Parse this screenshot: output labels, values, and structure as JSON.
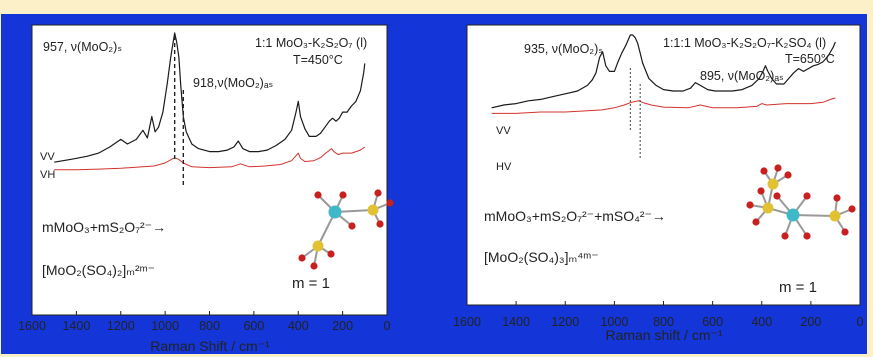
{
  "colors": {
    "page_bg": "#fbf0c8",
    "frame": "#1436d8",
    "vv_line": "#1a1a1a",
    "vh_line": "#d2322d",
    "mo_atom": "#3fb8c8",
    "s_atom": "#e2c233",
    "o_atom": "#c81f1f"
  },
  "chart_data": [
    {
      "type": "line",
      "xlabel": "Raman Shift / cm⁻¹",
      "xlim": [
        1600,
        0
      ],
      "xticks": [
        1600,
        1400,
        1200,
        1000,
        800,
        600,
        400,
        200,
        0
      ],
      "ylim": [
        0,
        10
      ],
      "annotations": {
        "composition": "1:1 MoO₃-K₂S₂O₇ (l)",
        "temperature": "T=450°C",
        "peak_s": "957, ν(MoO₂)ₛ",
        "peak_as": "918,ν(MoO₂)ₐₛ",
        "reaction": "mMoO₃+mS₂O₇²⁻→",
        "product": "[MoO₂(SO₄)₂]ₘ²ᵐ⁻",
        "m_value": "m = 1"
      },
      "series": [
        {
          "name": "VV",
          "x": [
            1500,
            1420,
            1350,
            1300,
            1250,
            1200,
            1170,
            1130,
            1100,
            1080,
            1060,
            1045,
            1030,
            1010,
            990,
            975,
            965,
            957,
            948,
            938,
            930,
            918,
            905,
            880,
            850,
            800,
            760,
            720,
            690,
            670,
            650,
            620,
            580,
            540,
            500,
            460,
            430,
            410,
            400,
            390,
            370,
            350,
            320,
            300,
            280,
            260,
            245,
            230,
            215,
            200,
            180,
            160,
            140,
            120,
            105,
            100
          ],
          "y": [
            1.3,
            1.5,
            1.7,
            1.9,
            2.3,
            2.8,
            2.5,
            2.8,
            3.4,
            2.9,
            4.3,
            3.3,
            3.6,
            4.6,
            6.5,
            8.2,
            9.1,
            9.8,
            9.2,
            8.2,
            6.4,
            4.3,
            3.3,
            2.5,
            2.2,
            2.0,
            2.0,
            2.1,
            2.3,
            2.7,
            2.2,
            2.0,
            2.0,
            2.1,
            2.4,
            2.8,
            3.4,
            4.6,
            5.3,
            4.3,
            3.5,
            3.0,
            3.0,
            3.2,
            3.6,
            4.0,
            4.2,
            4.0,
            4.2,
            4.6,
            4.6,
            5.0,
            5.3,
            6.0,
            7.2,
            7.8
          ]
        },
        {
          "name": "VH",
          "x": [
            1500,
            1400,
            1300,
            1200,
            1100,
            1050,
            1000,
            970,
            957,
            940,
            918,
            880,
            800,
            700,
            660,
            620,
            550,
            480,
            430,
            400,
            390,
            370,
            330,
            300,
            280,
            250,
            240,
            220,
            200,
            160,
            120,
            100
          ],
          "y": [
            0.8,
            0.8,
            0.85,
            0.9,
            1.0,
            1.05,
            1.25,
            1.5,
            1.6,
            1.5,
            1.25,
            1.0,
            0.95,
            1.0,
            1.2,
            1.0,
            1.05,
            1.15,
            1.4,
            1.9,
            1.55,
            1.35,
            1.4,
            1.6,
            1.85,
            2.2,
            2.0,
            1.8,
            1.9,
            1.9,
            2.1,
            2.3
          ]
        }
      ]
    },
    {
      "type": "line",
      "xlabel": "Raman shift / cm⁻¹",
      "xlim": [
        1600,
        0
      ],
      "xticks": [
        1600,
        1400,
        1200,
        1000,
        800,
        600,
        400,
        200,
        0
      ],
      "ylim": [
        0,
        10
      ],
      "annotations": {
        "composition": "1:1:1 MoO₃-K₂S₂O₇-K₂SO₄ (l)",
        "temperature": "T=650°C",
        "peak_s": "935, ν(MoO₂)ₛ",
        "peak_as": "895, ν(MoO₂)ₐₛ",
        "reaction": "mMoO₃+mS₂O₇²⁻+mSO₄²⁻→",
        "product": "[MoO₂(SO₄)₃]ₘ⁴ᵐ⁻",
        "m_value": "m = 1"
      },
      "series": [
        {
          "name": "VV",
          "x": [
            1500,
            1450,
            1400,
            1350,
            1300,
            1250,
            1200,
            1150,
            1110,
            1090,
            1075,
            1060,
            1048,
            1035,
            1020,
            1000,
            985,
            970,
            955,
            945,
            935,
            925,
            915,
            905,
            895,
            885,
            860,
            830,
            800,
            760,
            720,
            690,
            670,
            650,
            620,
            590,
            560,
            520,
            480,
            440,
            410,
            395,
            385,
            375,
            360,
            340,
            310,
            290,
            270,
            250,
            230,
            210,
            190,
            170,
            150,
            130,
            110,
            100
          ],
          "y": [
            5.3,
            5.5,
            5.6,
            5.8,
            5.9,
            6.1,
            6.3,
            6.5,
            6.9,
            7.3,
            7.8,
            8.9,
            9.3,
            8.3,
            7.9,
            7.9,
            8.6,
            9.2,
            9.7,
            10.1,
            10.5,
            10.5,
            10.3,
            9.9,
            9.2,
            8.5,
            7.4,
            6.9,
            6.6,
            6.5,
            6.5,
            6.7,
            7.1,
            6.9,
            6.6,
            6.5,
            6.5,
            6.5,
            6.6,
            6.9,
            7.4,
            7.9,
            8.3,
            7.9,
            7.4,
            7.0,
            7.0,
            7.4,
            7.8,
            8.1,
            7.9,
            8.1,
            8.3,
            8.4,
            8.6,
            9.0,
            9.6,
            10.0
          ]
        },
        {
          "name": "HV",
          "x": [
            1500,
            1400,
            1300,
            1200,
            1100,
            1050,
            1000,
            960,
            930,
            900,
            880,
            850,
            800,
            700,
            650,
            600,
            500,
            420,
            400,
            380,
            300,
            200,
            150,
            120,
            100
          ],
          "y": [
            4.9,
            4.9,
            5.0,
            5.0,
            5.1,
            5.15,
            5.3,
            5.5,
            5.7,
            5.8,
            5.65,
            5.5,
            5.35,
            5.3,
            5.5,
            5.3,
            5.3,
            5.4,
            5.6,
            5.5,
            5.6,
            5.6,
            5.7,
            5.9,
            6.0
          ]
        }
      ]
    }
  ]
}
